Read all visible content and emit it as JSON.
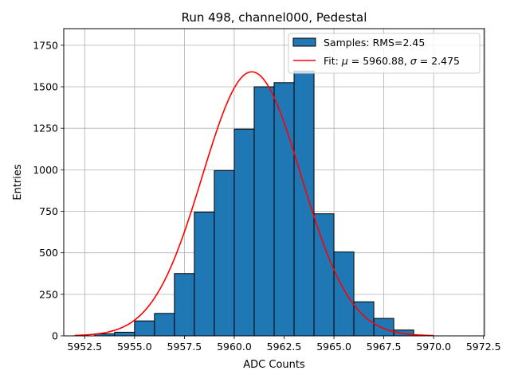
{
  "chart_data": {
    "type": "bar",
    "title": "Run 498, channel000, Pedestal",
    "xlabel": "ADC Counts",
    "ylabel": "Entries",
    "xlim": [
      5951.45,
      5972.55
    ],
    "ylim": [
      0,
      1850
    ],
    "grid": true,
    "legend_position": "top-right",
    "x_ticks": [
      5952.5,
      5955.0,
      5957.5,
      5960.0,
      5962.5,
      5965.0,
      5967.5,
      5970.0,
      5972.5
    ],
    "x_tick_labels": [
      "5952.5",
      "5955.0",
      "5957.5",
      "5960.0",
      "5962.5",
      "5965.0",
      "5967.5",
      "5970.0",
      "5972.5"
    ],
    "y_ticks": [
      0,
      250,
      500,
      750,
      1000,
      1250,
      1500,
      1750
    ],
    "y_tick_labels": [
      "0",
      "250",
      "500",
      "750",
      "1000",
      "1250",
      "1500",
      "1750"
    ],
    "histogram": {
      "name": "Samples: RMS=2.45",
      "color": "#1f77b4",
      "edgecolor": "#000000",
      "bin_edges": [
        5953,
        5954,
        5955,
        5956,
        5957,
        5958,
        5959,
        5960,
        5961,
        5962,
        5963,
        5964,
        5965,
        5966,
        5967,
        5968,
        5969
      ],
      "counts": [
        12,
        22,
        90,
        135,
        375,
        745,
        995,
        1245,
        1500,
        1525,
        1595,
        735,
        505,
        205,
        105,
        35
      ]
    },
    "fit": {
      "name": "Fit: μ = 5960.88, σ = 2.475",
      "color": "#ff0000",
      "mu": 5960.88,
      "sigma": 2.475,
      "amplitude": 1590,
      "x_range": [
        5952,
        5970
      ]
    }
  },
  "legend": {
    "samples_prefix": "Samples: RMS=2.45",
    "fit_prefix": "Fit: ",
    "fit_mu_symbol": "μ",
    "fit_mu_value": " = 5960.88, ",
    "fit_sigma_symbol": "σ",
    "fit_sigma_value": " = 2.475"
  }
}
